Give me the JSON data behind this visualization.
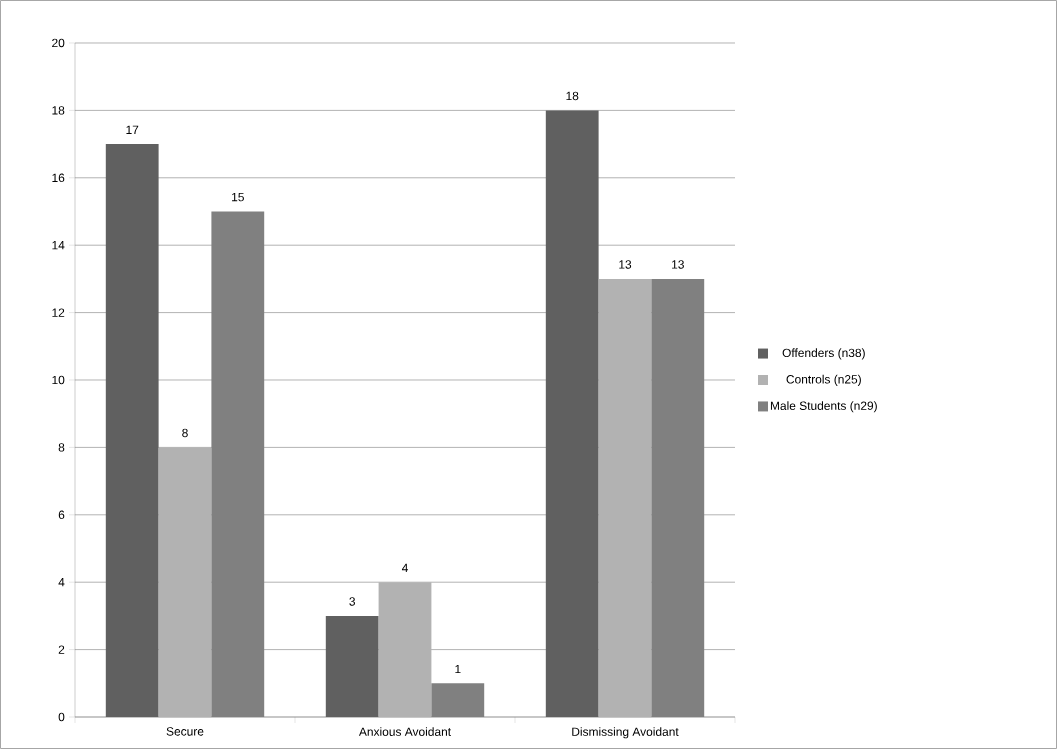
{
  "chart_data": {
    "type": "bar",
    "categories": [
      "Secure",
      "Anxious Avoidant",
      "Dismissing Avoidant"
    ],
    "series": [
      {
        "name": "Offenders (n38)",
        "color": "#606060",
        "values": [
          17,
          3,
          18
        ]
      },
      {
        "name": "Controls (n25)",
        "color": "#b2b2b2",
        "values": [
          8,
          4,
          13
        ]
      },
      {
        "name": "Male Students (n29)",
        "color": "#808080",
        "values": [
          15,
          1,
          13
        ]
      }
    ],
    "ylim": [
      0,
      20
    ],
    "yticks": [
      0,
      2,
      4,
      6,
      8,
      10,
      12,
      14,
      16,
      18,
      20
    ],
    "grid": "y",
    "legend": "right",
    "data_labels": true
  }
}
